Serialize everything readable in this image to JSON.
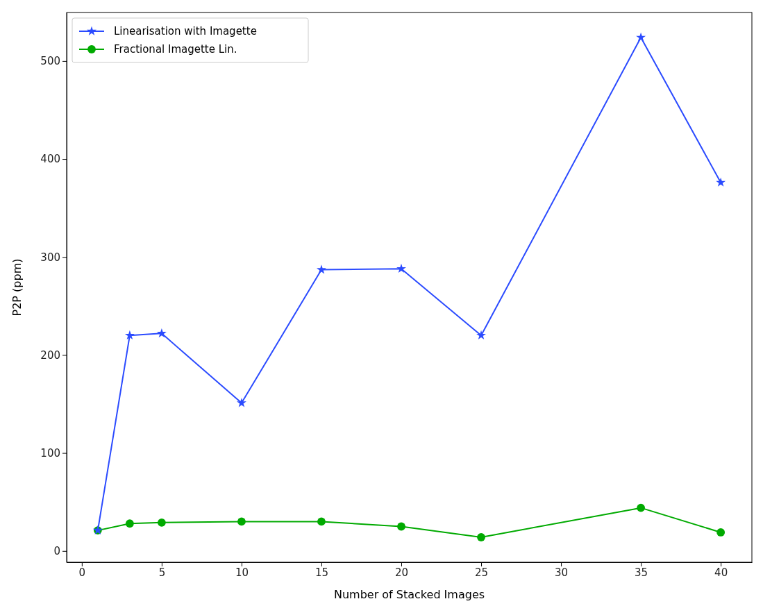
{
  "chart_data": {
    "type": "line",
    "xlabel": "Number of Stacked Images",
    "ylabel": "P2P (ppm)",
    "x": [
      1,
      3,
      5,
      10,
      15,
      20,
      25,
      35,
      40
    ],
    "series": [
      {
        "name": "Linearisation with Imagette",
        "color": "#2b4bff",
        "marker": "star",
        "values": [
          21,
          220,
          222,
          151,
          287,
          288,
          220,
          524,
          376
        ]
      },
      {
        "name": "Fractional Imagette Lin.",
        "color": "#00aa00",
        "marker": "circle",
        "values": [
          21,
          28,
          29,
          30,
          30,
          25,
          14,
          44,
          19
        ]
      }
    ],
    "xlim": [
      -0.95,
      41.95
    ],
    "ylim": [
      -11.5,
      549.5
    ],
    "xticks": [
      0,
      5,
      10,
      15,
      20,
      25,
      30,
      35,
      40
    ],
    "yticks": [
      0,
      100,
      200,
      300,
      400,
      500
    ],
    "legend": "top left",
    "grid": false,
    "line_style": "solid"
  }
}
